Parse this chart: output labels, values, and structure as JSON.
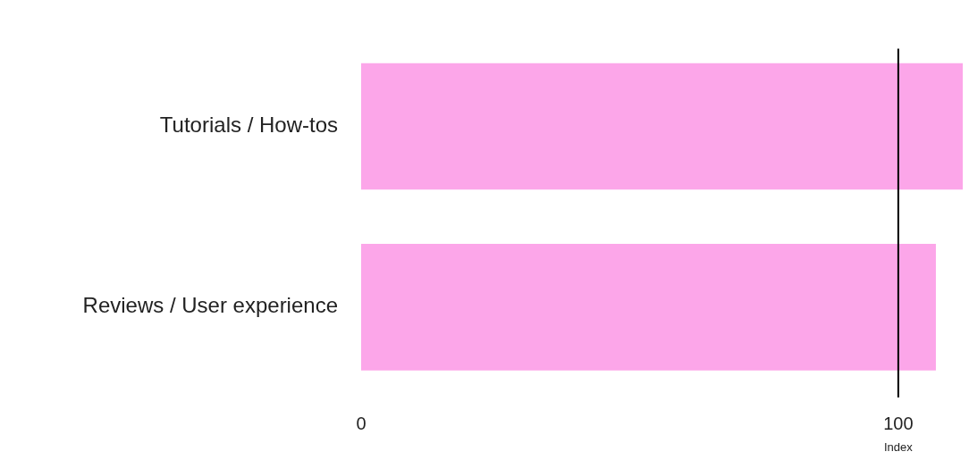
{
  "chart_data": {
    "type": "bar",
    "orientation": "horizontal",
    "categories": [
      "Tutorials / How-tos",
      "Reviews / User experience"
    ],
    "values": [
      112,
      107
    ],
    "color": "#fca6e9",
    "xlim": [
      0,
      112.5
    ],
    "xticks": [
      0,
      100
    ],
    "grid": false,
    "legend": false,
    "ref_lines": [
      {
        "axis": "x",
        "value": 100,
        "label": "Index",
        "color": "#000000"
      }
    ]
  }
}
